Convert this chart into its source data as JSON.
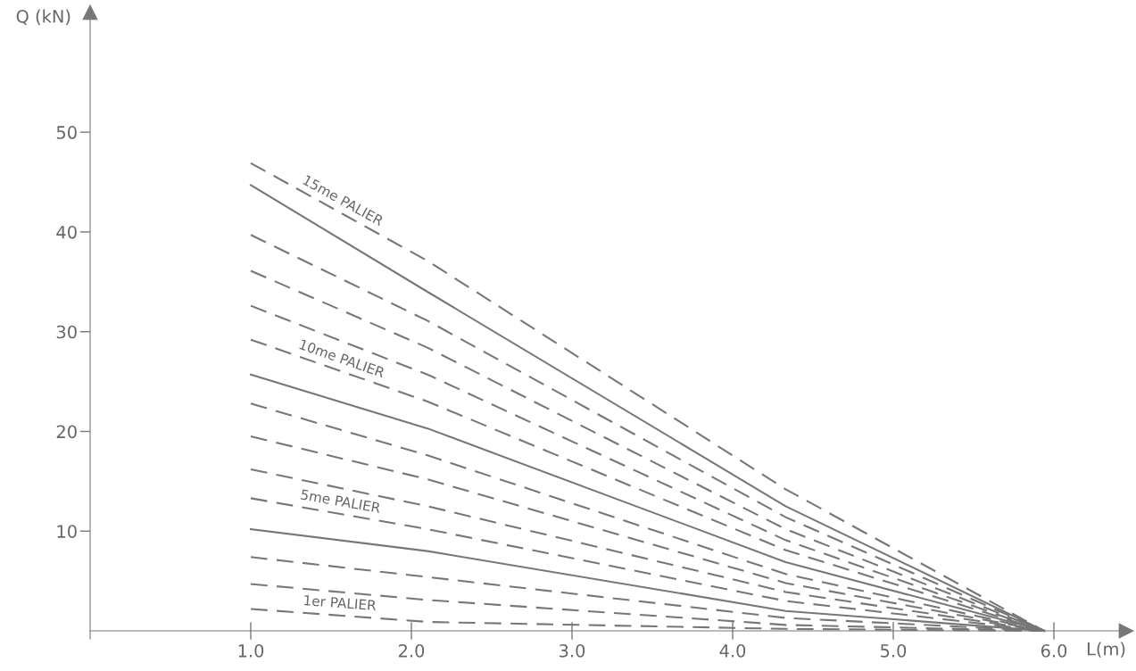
{
  "chart_data": {
    "type": "line",
    "xlabel": "L(m)",
    "ylabel": "Q (kN)",
    "xlim": [
      0,
      6.45
    ],
    "ylim": [
      -0.8,
      62
    ],
    "xticks": [
      {
        "value": 1,
        "label": "1.0"
      },
      {
        "value": 2,
        "label": "2.0"
      },
      {
        "value": 3,
        "label": "3.0"
      },
      {
        "value": 4,
        "label": "4.0"
      },
      {
        "value": 5,
        "label": "5.0"
      },
      {
        "value": 6,
        "label": "6.0"
      }
    ],
    "yticks": [
      10,
      20,
      30,
      40,
      50
    ],
    "grid": false,
    "legend": false,
    "marker": "none",
    "x": [
      1,
      2.1,
      4.33,
      5.94
    ],
    "series": [
      {
        "name": "15me PALIER",
        "color": "#777777",
        "line_style": "dashed",
        "values": [
          46.9,
          37.1,
          14.2,
          0
        ]
      },
      {
        "color": "#777777",
        "line_style": "solid",
        "values": [
          44.7,
          34.0,
          12.5,
          0
        ]
      },
      {
        "color": "#777777",
        "line_style": "dashed",
        "values": [
          39.7,
          31.1,
          11.4,
          0
        ]
      },
      {
        "color": "#777777",
        "line_style": "dashed",
        "values": [
          36.1,
          28.4,
          10.2,
          0
        ]
      },
      {
        "color": "#777777",
        "line_style": "dashed",
        "values": [
          32.6,
          25.7,
          9.1,
          0
        ]
      },
      {
        "name": "10me PALIER",
        "color": "#777777",
        "line_style": "dashed",
        "values": [
          29.2,
          23.0,
          8.1,
          0
        ]
      },
      {
        "color": "#777777",
        "line_style": "solid",
        "values": [
          25.7,
          20.3,
          6.9,
          0
        ]
      },
      {
        "color": "#777777",
        "line_style": "dashed",
        "values": [
          22.8,
          17.6,
          5.7,
          0
        ]
      },
      {
        "color": "#777777",
        "line_style": "dashed",
        "values": [
          19.5,
          15.2,
          4.8,
          0
        ]
      },
      {
        "color": "#777777",
        "line_style": "dashed",
        "values": [
          16.2,
          12.5,
          3.9,
          0
        ]
      },
      {
        "name": "5me PALIER",
        "color": "#777777",
        "line_style": "dashed",
        "values": [
          13.3,
          10.2,
          3.0,
          0
        ]
      },
      {
        "color": "#777777",
        "line_style": "solid",
        "values": [
          10.2,
          8.0,
          2.0,
          0
        ]
      },
      {
        "color": "#777777",
        "line_style": "dashed",
        "values": [
          7.4,
          5.4,
          1.3,
          0
        ]
      },
      {
        "color": "#777777",
        "line_style": "dashed",
        "values": [
          4.7,
          3.1,
          0.6,
          0
        ]
      },
      {
        "name": "1er PALIER",
        "color": "#777777",
        "line_style": "dashed",
        "values": [
          2.2,
          0.9,
          0.2,
          0
        ]
      }
    ]
  }
}
